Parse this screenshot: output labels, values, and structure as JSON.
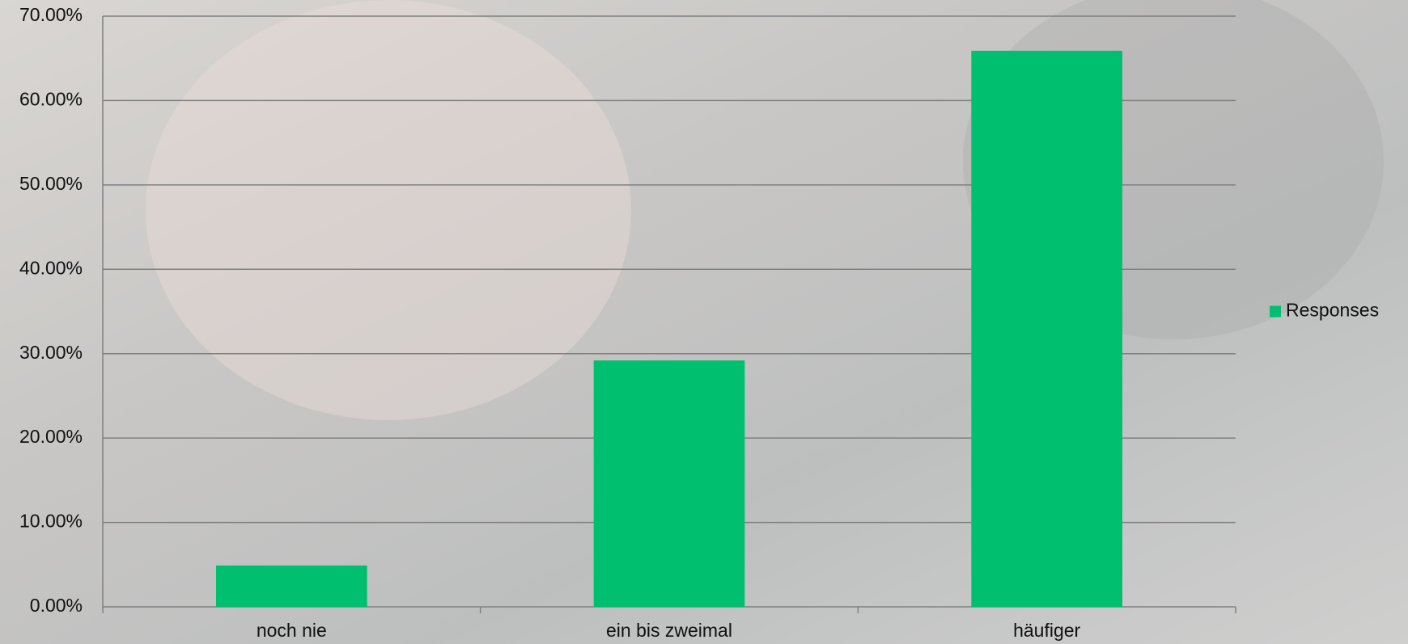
{
  "chart_data": {
    "type": "bar",
    "categories": [
      "noch nie",
      "ein bis zweimal",
      "häufiger"
    ],
    "series": [
      {
        "name": "Responses",
        "color": "#00bf6f",
        "values": [
          4.9,
          29.2,
          65.9
        ]
      }
    ],
    "ylim": [
      0,
      70
    ],
    "yticks": [
      {
        "value": 0,
        "label": "0.00%"
      },
      {
        "value": 10,
        "label": "10.00%"
      },
      {
        "value": 20,
        "label": "20.00%"
      },
      {
        "value": 30,
        "label": "30.00%"
      },
      {
        "value": 40,
        "label": "40.00%"
      },
      {
        "value": 50,
        "label": "50.00%"
      },
      {
        "value": 60,
        "label": "60.00%"
      },
      {
        "value": 70,
        "label": "70.00%"
      }
    ],
    "grid": true,
    "legend": "right"
  }
}
